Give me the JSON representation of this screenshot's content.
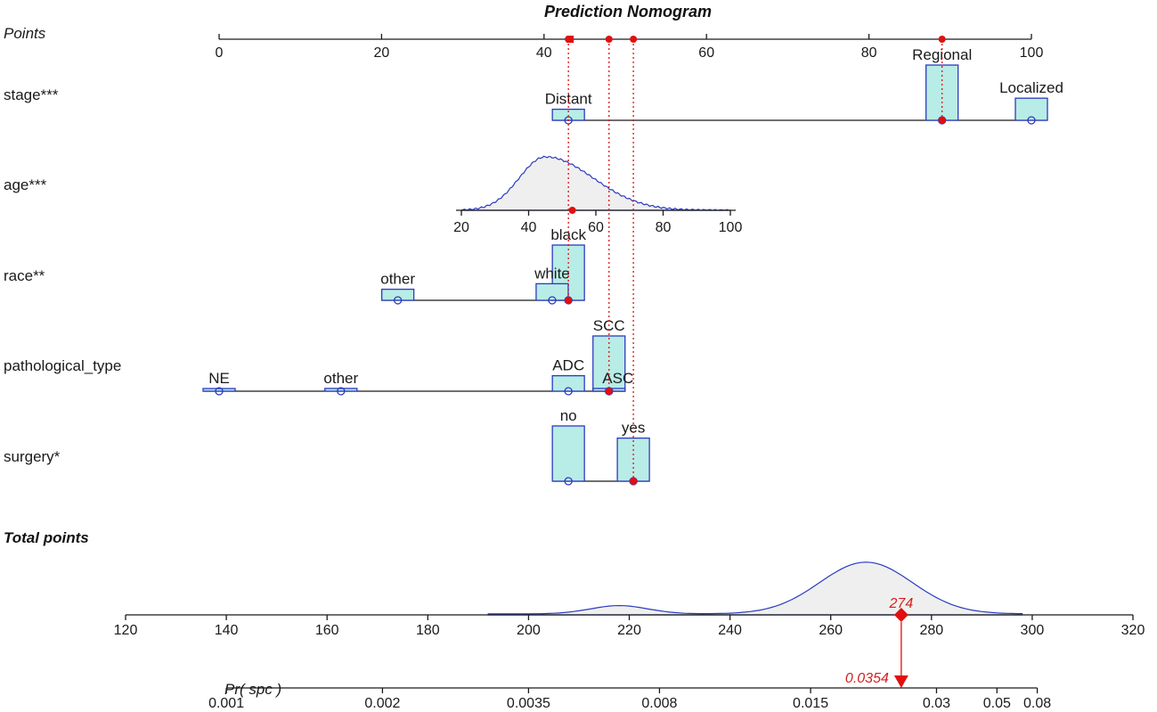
{
  "colors": {
    "axis": "#1a1a1a",
    "bar_fill": "#b8ece6",
    "bar_stroke": "#2b3bbf",
    "marker": "#e01010",
    "density_fill": "#efefef",
    "density_stroke": "#2b3bbf"
  },
  "chart_data": {
    "type": "nomogram",
    "title": "Prediction Nomogram",
    "points_axis": {
      "label": "Points",
      "min": 0,
      "max": 100,
      "ticks": [
        0,
        20,
        40,
        60,
        80,
        100
      ]
    },
    "variables": [
      {
        "key": "stage",
        "label": "stage***",
        "categories": [
          {
            "name": "Distant",
            "points": 43,
            "bar": 0.2
          },
          {
            "name": "Regional",
            "points": 89,
            "bar": 1.0,
            "selected": true
          },
          {
            "name": "Localized",
            "points": 100,
            "bar": 0.4
          }
        ]
      },
      {
        "key": "age",
        "label": "age***",
        "axis": {
          "min": 20,
          "max": 100,
          "ticks": [
            20,
            40,
            60,
            80,
            100
          ]
        },
        "selected_value": 53
      },
      {
        "key": "race",
        "label": "race**",
        "categories": [
          {
            "name": "other",
            "points": 22,
            "bar": 0.2
          },
          {
            "name": "white",
            "points": 41,
            "bar": 0.3
          },
          {
            "name": "black",
            "points": 43,
            "bar": 1.0,
            "selected": true
          }
        ]
      },
      {
        "key": "pathological_type",
        "label": "pathological_type",
        "categories": [
          {
            "name": "NE",
            "points": 0,
            "bar": 0.03
          },
          {
            "name": "other",
            "points": 15,
            "bar": 0.05
          },
          {
            "name": "ADC",
            "points": 43,
            "bar": 0.28
          },
          {
            "name": "SCC",
            "points": 48,
            "bar": 1.0
          },
          {
            "name": "ASC",
            "points": 48,
            "bar": 0.05,
            "selected": true
          }
        ]
      },
      {
        "key": "surgery",
        "label": "surgery*",
        "categories": [
          {
            "name": "no",
            "points": 43,
            "bar": 1.0
          },
          {
            "name": "yes",
            "points": 51,
            "bar": 0.78,
            "selected": true
          }
        ]
      }
    ],
    "selected_points": [
      43,
      48,
      51
    ],
    "total_points_axis": {
      "label": "Total points",
      "min": 120,
      "max": 320,
      "ticks": [
        120,
        140,
        160,
        180,
        200,
        220,
        240,
        260,
        280,
        300,
        320
      ]
    },
    "total_value": 274,
    "total_value_label": "274",
    "probability_axis": {
      "label": "Pr( spc )",
      "ticks": [
        {
          "label": "0.001",
          "total": 140
        },
        {
          "label": "0.002",
          "total": 171
        },
        {
          "label": "0.0035",
          "total": 200
        },
        {
          "label": "0.008",
          "total": 226
        },
        {
          "label": "0.015",
          "total": 256
        },
        {
          "label": "0.03",
          "total": 281
        },
        {
          "label": "0.05",
          "total": 293
        },
        {
          "label": "0.08",
          "total": 301
        }
      ]
    },
    "probability_value": 0.0354,
    "probability_value_label": "0.0354"
  }
}
